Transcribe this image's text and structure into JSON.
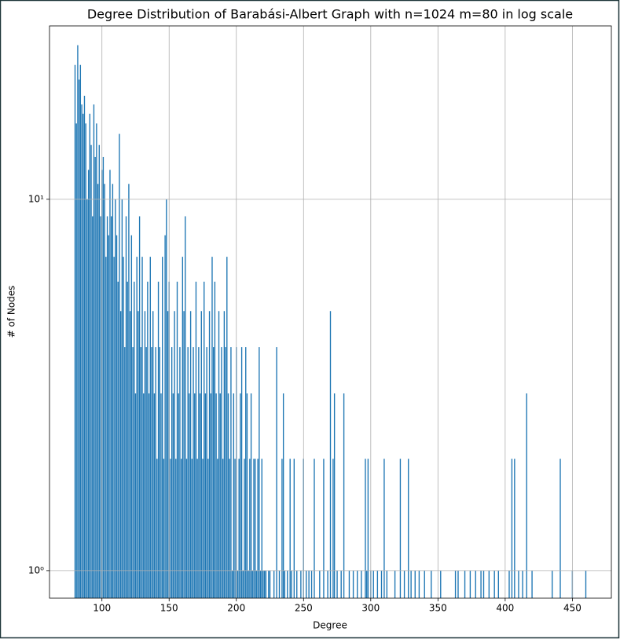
{
  "chart_data": {
    "type": "bar",
    "title": "Degree Distribution of Barabási-Albert Graph with n=1024 m=80 in log scale",
    "xlabel": "Degree",
    "ylabel": "# of Nodes",
    "color": "#1f77b4",
    "log_y": true,
    "grid": true,
    "xlim": [
      61,
      479
    ],
    "ylim": [
      0.843,
      29.3
    ],
    "xticks": [
      100,
      150,
      200,
      250,
      300,
      350,
      400,
      450
    ],
    "yticks": [
      {
        "value": 1,
        "label": "10⁰"
      },
      {
        "value": 10,
        "label": "10¹"
      }
    ],
    "x": [
      80,
      81,
      82,
      83,
      84,
      85,
      86,
      87,
      88,
      89,
      90,
      91,
      92,
      93,
      94,
      95,
      96,
      97,
      98,
      99,
      100,
      101,
      102,
      103,
      104,
      105,
      106,
      107,
      108,
      109,
      110,
      111,
      112,
      113,
      114,
      115,
      116,
      117,
      118,
      119,
      120,
      121,
      122,
      123,
      124,
      125,
      126,
      127,
      128,
      129,
      130,
      131,
      132,
      133,
      134,
      135,
      136,
      137,
      138,
      139,
      140,
      141,
      142,
      143,
      144,
      145,
      146,
      147,
      148,
      149,
      150,
      151,
      152,
      153,
      154,
      155,
      156,
      157,
      158,
      159,
      160,
      161,
      162,
      163,
      164,
      165,
      166,
      167,
      168,
      169,
      170,
      171,
      172,
      173,
      174,
      175,
      176,
      177,
      178,
      179,
      180,
      181,
      182,
      183,
      184,
      185,
      186,
      187,
      188,
      189,
      190,
      191,
      192,
      193,
      194,
      195,
      196,
      197,
      198,
      199,
      200,
      201,
      202,
      203,
      204,
      205,
      206,
      207,
      208,
      209,
      210,
      211,
      212,
      213,
      214,
      215,
      216,
      217,
      218,
      219,
      220,
      221,
      222,
      224,
      225,
      228,
      230,
      232,
      234,
      235,
      236,
      238,
      240,
      241,
      243,
      245,
      248,
      250,
      252,
      254,
      256,
      258,
      262,
      265,
      268,
      270,
      272,
      273,
      275,
      278,
      280,
      284,
      287,
      290,
      293,
      296,
      297,
      298,
      300,
      302,
      305,
      308,
      310,
      312,
      318,
      322,
      325,
      328,
      330,
      333,
      336,
      340,
      345,
      352,
      363,
      365,
      370,
      374,
      378,
      382,
      384,
      388,
      392,
      395,
      403,
      405,
      407,
      410,
      413,
      416,
      420,
      435,
      441,
      450,
      460
    ],
    "values": [
      23,
      16,
      26,
      21,
      23,
      18,
      17,
      19,
      16,
      10,
      12,
      17,
      14,
      9,
      18,
      13,
      16,
      11,
      14,
      9,
      12,
      13,
      11,
      7,
      9,
      8,
      12,
      9,
      11,
      7,
      10,
      8,
      6,
      15,
      5,
      10,
      7,
      4,
      9,
      6,
      11,
      5,
      8,
      4,
      6,
      3,
      7,
      5,
      9,
      4,
      7,
      3,
      5,
      4,
      6,
      3,
      7,
      4,
      5,
      3,
      4,
      2,
      6,
      4,
      3,
      7,
      2,
      8,
      10,
      5,
      6,
      2,
      4,
      3,
      5,
      2,
      6,
      3,
      4,
      2,
      7,
      5,
      9,
      2,
      4,
      3,
      5,
      2,
      4,
      3,
      6,
      2,
      4,
      3,
      5,
      2,
      6,
      3,
      4,
      2,
      5,
      3,
      7,
      4,
      6,
      3,
      2,
      5,
      3,
      4,
      2,
      5,
      4,
      7,
      3,
      2,
      4,
      1,
      3,
      2,
      4,
      1,
      2,
      3,
      4,
      1,
      2,
      4,
      3,
      1,
      2,
      3,
      1,
      2,
      2,
      1,
      2,
      4,
      1,
      2,
      1,
      1,
      1,
      1,
      1,
      1,
      4,
      1,
      2,
      3,
      1,
      1,
      2,
      1,
      2,
      1,
      1,
      2,
      1,
      1,
      1,
      2,
      1,
      2,
      1,
      5,
      2,
      3,
      1,
      1,
      3,
      1,
      1,
      1,
      1,
      2,
      1,
      2,
      1,
      1,
      1,
      1,
      2,
      1,
      1,
      2,
      1,
      2,
      1,
      1,
      1,
      1,
      1,
      1,
      1,
      1,
      1,
      1,
      1,
      1,
      1,
      1,
      1,
      1,
      1,
      2,
      2,
      1,
      1,
      3,
      1,
      1,
      2,
      1,
      1
    ]
  }
}
